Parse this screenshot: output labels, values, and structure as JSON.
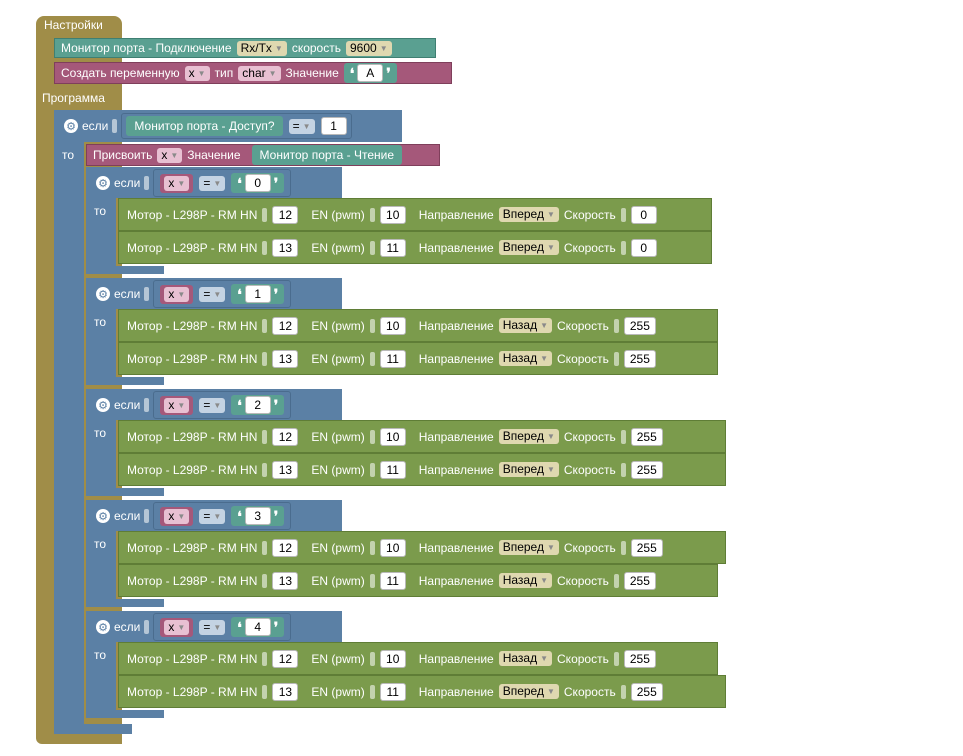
{
  "setup": {
    "title": "Настройки",
    "serial": {
      "label": "Монитор порта - Подключение",
      "mode_value": "Rx/Tx",
      "speed_label": "скорость",
      "speed_value": "9600"
    },
    "create_var": {
      "label": "Создать переменную",
      "var_value": "x",
      "type_label": "тип",
      "type_value": "char",
      "value_label": "Значение",
      "char_value": "A"
    }
  },
  "program": {
    "title": "Программа",
    "if_label": "если",
    "then_label": "то",
    "outer_if": {
      "left": "Монитор порта - Доступ?",
      "op": "=",
      "right": "1"
    },
    "assign": {
      "label": "Присвоить",
      "var_value": "x",
      "value_label": "Значение",
      "source": "Монитор порта - Чтение"
    },
    "motor_labels": {
      "name": "Мотор - L298P - RM HN",
      "en": "EN (pwm)",
      "dir": "Направление",
      "speed": "Скорость"
    },
    "branches": [
      {
        "var": "x",
        "op": "=",
        "char": "0",
        "motors": [
          {
            "pin": "12",
            "en": "10",
            "dir": "Вперед",
            "speed": "0"
          },
          {
            "pin": "13",
            "en": "11",
            "dir": "Вперед",
            "speed": "0"
          }
        ]
      },
      {
        "var": "x",
        "op": "=",
        "char": "1",
        "motors": [
          {
            "pin": "12",
            "en": "10",
            "dir": "Назад",
            "speed": "255"
          },
          {
            "pin": "13",
            "en": "11",
            "dir": "Назад",
            "speed": "255"
          }
        ]
      },
      {
        "var": "x",
        "op": "=",
        "char": "2",
        "motors": [
          {
            "pin": "12",
            "en": "10",
            "dir": "Вперед",
            "speed": "255"
          },
          {
            "pin": "13",
            "en": "11",
            "dir": "Вперед",
            "speed": "255"
          }
        ]
      },
      {
        "var": "x",
        "op": "=",
        "char": "3",
        "motors": [
          {
            "pin": "12",
            "en": "10",
            "dir": "Вперед",
            "speed": "255"
          },
          {
            "pin": "13",
            "en": "11",
            "dir": "Назад",
            "speed": "255"
          }
        ]
      },
      {
        "var": "x",
        "op": "=",
        "char": "4",
        "motors": [
          {
            "pin": "12",
            "en": "10",
            "dir": "Назад",
            "speed": "255"
          },
          {
            "pin": "13",
            "en": "11",
            "dir": "Вперед",
            "speed": "255"
          }
        ]
      }
    ]
  },
  "icons": {
    "gear": "gear-icon",
    "dropdown": "dropdown-arrow-icon",
    "quote_open": "quote-open-icon",
    "quote_close": "quote-close-icon"
  },
  "colors": {
    "setup_block": "#a08d48",
    "control_block": "#5b80a5",
    "serial_block": "#5aa091",
    "variable_block": "#a5587a",
    "motor_block": "#7b9b4c"
  }
}
